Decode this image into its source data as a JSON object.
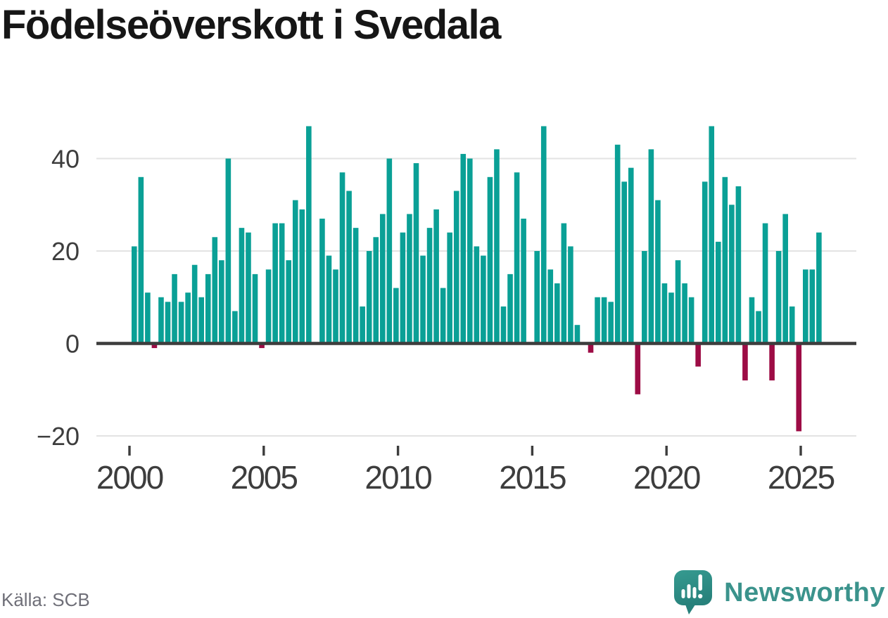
{
  "title": "Födelseöverskott i Svedala",
  "source": {
    "label": "Källa: SCB"
  },
  "brand": {
    "name": "Newsworthy"
  },
  "colors": {
    "positive": "#0aa096",
    "negative": "#9d0c45",
    "axis": "#3d3d3d",
    "grid": "#e3e3e3",
    "tick_label": "#3d3d3d",
    "title_text": "#161616",
    "source_text": "#6f6f78",
    "brand_teal": "#3b938c",
    "logo_bubble": "#2f918a",
    "logo_bubble_dark": "#27817b"
  },
  "chart_data": {
    "type": "bar",
    "title": "Födelseöverskott i Svedala",
    "x_period": "quarterly",
    "range": "2000 Q1 – 2025 Q3",
    "positive_color": "#0aa096",
    "negative_color": "#9d0c45",
    "grid": "horizontal",
    "ylim": [
      -22,
      50
    ],
    "yticks": [
      {
        "value": -20,
        "label": "−20"
      },
      {
        "value": 0,
        "label": "0"
      },
      {
        "value": 20,
        "label": "20"
      },
      {
        "value": 40,
        "label": "40"
      }
    ],
    "xticks": [
      {
        "value": 2000,
        "label": "2000"
      },
      {
        "value": 2005,
        "label": "2005"
      },
      {
        "value": 2010,
        "label": "2010"
      },
      {
        "value": 2015,
        "label": "2015"
      },
      {
        "value": 2020,
        "label": "2020"
      },
      {
        "value": 2025,
        "label": "2025"
      }
    ],
    "years": [
      {
        "year": 2000,
        "quarters": [
          21,
          36,
          11,
          -1
        ]
      },
      {
        "year": 2001,
        "quarters": [
          10,
          9,
          15,
          9
        ]
      },
      {
        "year": 2002,
        "quarters": [
          11,
          17,
          10,
          15
        ]
      },
      {
        "year": 2003,
        "quarters": [
          23,
          18,
          40,
          7
        ]
      },
      {
        "year": 2004,
        "quarters": [
          25,
          24,
          15,
          -1
        ]
      },
      {
        "year": 2005,
        "quarters": [
          16,
          26,
          26,
          18
        ]
      },
      {
        "year": 2006,
        "quarters": [
          31,
          29,
          47,
          0
        ]
      },
      {
        "year": 2007,
        "quarters": [
          27,
          19,
          16,
          37
        ]
      },
      {
        "year": 2008,
        "quarters": [
          33,
          25,
          8,
          20
        ]
      },
      {
        "year": 2009,
        "quarters": [
          23,
          28,
          40,
          12
        ]
      },
      {
        "year": 2010,
        "quarters": [
          24,
          28,
          39,
          19
        ]
      },
      {
        "year": 2011,
        "quarters": [
          25,
          29,
          12,
          24
        ]
      },
      {
        "year": 2012,
        "quarters": [
          33,
          41,
          40,
          21
        ]
      },
      {
        "year": 2013,
        "quarters": [
          19,
          36,
          42,
          8
        ]
      },
      {
        "year": 2014,
        "quarters": [
          15,
          37,
          27,
          0
        ]
      },
      {
        "year": 2015,
        "quarters": [
          20,
          47,
          16,
          13
        ]
      },
      {
        "year": 2016,
        "quarters": [
          26,
          21,
          4,
          0
        ]
      },
      {
        "year": 2017,
        "quarters": [
          -2,
          10,
          10,
          9
        ]
      },
      {
        "year": 2018,
        "quarters": [
          43,
          35,
          38,
          -11
        ]
      },
      {
        "year": 2019,
        "quarters": [
          20,
          42,
          31,
          13
        ]
      },
      {
        "year": 2020,
        "quarters": [
          11,
          18,
          13,
          10
        ]
      },
      {
        "year": 2021,
        "quarters": [
          -5,
          35,
          47,
          22
        ]
      },
      {
        "year": 2022,
        "quarters": [
          36,
          30,
          34,
          -8
        ]
      },
      {
        "year": 2023,
        "quarters": [
          10,
          7,
          26,
          -8
        ]
      },
      {
        "year": 2024,
        "quarters": [
          20,
          28,
          8,
          -19
        ]
      },
      {
        "year": 2025,
        "quarters": [
          16,
          16,
          24
        ]
      }
    ]
  }
}
